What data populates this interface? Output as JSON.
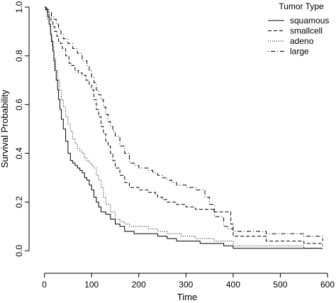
{
  "chart_data": {
    "type": "line",
    "step": true,
    "xlabel": "Time",
    "ylabel": "Survival Probability",
    "xlim": [
      -10,
      600
    ],
    "ylim": [
      -0.04,
      1.0
    ],
    "x_ticks": [
      0,
      100,
      200,
      300,
      400,
      500,
      600
    ],
    "y_ticks": [
      0.0,
      0.2,
      0.4,
      0.6,
      0.8,
      1.0
    ],
    "x_tick_labels": [
      "0",
      "100",
      "200",
      "300",
      "400",
      "500",
      "600"
    ],
    "y_tick_labels": [
      "0.0",
      "0.2",
      "0.4",
      "0.6",
      "0.8",
      "1.0"
    ],
    "grid": false,
    "legend": {
      "title": "Tumor Type",
      "position": "top-right"
    },
    "series": [
      {
        "name": "squamous",
        "line_style": "solid",
        "x": [
          0,
          3,
          7,
          10,
          13,
          15,
          18,
          20,
          22,
          25,
          28,
          30,
          33,
          36,
          40,
          45,
          50,
          55,
          60,
          65,
          70,
          75,
          80,
          85,
          90,
          95,
          100,
          105,
          110,
          115,
          120,
          130,
          140,
          150,
          160,
          170,
          190,
          220,
          240,
          260,
          280,
          330,
          380,
          400,
          550,
          590
        ],
        "y": [
          1.0,
          0.99,
          0.96,
          0.93,
          0.89,
          0.86,
          0.82,
          0.78,
          0.74,
          0.7,
          0.66,
          0.62,
          0.58,
          0.54,
          0.5,
          0.45,
          0.4,
          0.37,
          0.36,
          0.35,
          0.34,
          0.33,
          0.32,
          0.3,
          0.29,
          0.27,
          0.25,
          0.22,
          0.2,
          0.18,
          0.16,
          0.15,
          0.13,
          0.11,
          0.1,
          0.08,
          0.07,
          0.07,
          0.06,
          0.05,
          0.04,
          0.03,
          0.02,
          0.01,
          0.01,
          0.01
        ]
      },
      {
        "name": "smallcell",
        "line_style": "dashed",
        "x": [
          0,
          3,
          7,
          10,
          14,
          18,
          22,
          26,
          30,
          34,
          38,
          45,
          52,
          58,
          65,
          72,
          80,
          88,
          95,
          100,
          105,
          110,
          115,
          120,
          125,
          130,
          135,
          140,
          145,
          150,
          160,
          170,
          180,
          190,
          200,
          210,
          220,
          235,
          240,
          250,
          260,
          280,
          300,
          320,
          340,
          360,
          380,
          395,
          400,
          470,
          550,
          590
        ],
        "y": [
          1.0,
          0.99,
          0.98,
          0.96,
          0.94,
          0.92,
          0.9,
          0.88,
          0.86,
          0.85,
          0.83,
          0.8,
          0.77,
          0.76,
          0.74,
          0.73,
          0.72,
          0.7,
          0.68,
          0.66,
          0.62,
          0.58,
          0.55,
          0.51,
          0.48,
          0.45,
          0.43,
          0.4,
          0.37,
          0.34,
          0.31,
          0.28,
          0.26,
          0.26,
          0.25,
          0.25,
          0.24,
          0.23,
          0.22,
          0.21,
          0.2,
          0.19,
          0.18,
          0.17,
          0.17,
          0.16,
          0.16,
          0.11,
          0.06,
          0.04,
          0.03,
          0.02
        ]
      },
      {
        "name": "adeno",
        "line_style": "dotted",
        "x": [
          0,
          3,
          7,
          10,
          13,
          16,
          20,
          24,
          28,
          32,
          36,
          40,
          45,
          50,
          55,
          60,
          65,
          70,
          75,
          80,
          85,
          90,
          95,
          100,
          105,
          110,
          115,
          120,
          125,
          130,
          140,
          150,
          160,
          170,
          180,
          200,
          220,
          240,
          260,
          290,
          320,
          360,
          400,
          450,
          550,
          590
        ],
        "y": [
          1.0,
          0.98,
          0.95,
          0.92,
          0.88,
          0.84,
          0.79,
          0.74,
          0.7,
          0.66,
          0.62,
          0.59,
          0.55,
          0.52,
          0.49,
          0.46,
          0.44,
          0.42,
          0.41,
          0.4,
          0.38,
          0.37,
          0.36,
          0.35,
          0.34,
          0.31,
          0.29,
          0.26,
          0.22,
          0.19,
          0.16,
          0.13,
          0.12,
          0.11,
          0.1,
          0.1,
          0.09,
          0.08,
          0.07,
          0.06,
          0.05,
          0.04,
          0.02,
          0.02,
          0.01,
          0.01
        ]
      },
      {
        "name": "large",
        "line_style": "dotdash",
        "x": [
          0,
          5,
          10,
          15,
          20,
          25,
          30,
          35,
          40,
          50,
          60,
          70,
          80,
          90,
          95,
          100,
          105,
          110,
          115,
          120,
          125,
          130,
          135,
          140,
          145,
          150,
          160,
          170,
          180,
          190,
          200,
          210,
          220,
          230,
          240,
          250,
          260,
          270,
          280,
          300,
          320,
          330,
          340,
          350,
          360,
          380,
          390,
          400,
          470,
          550,
          590
        ],
        "y": [
          1.0,
          0.99,
          0.98,
          0.96,
          0.95,
          0.93,
          0.91,
          0.89,
          0.87,
          0.85,
          0.83,
          0.81,
          0.78,
          0.76,
          0.74,
          0.71,
          0.69,
          0.66,
          0.64,
          0.62,
          0.59,
          0.56,
          0.53,
          0.51,
          0.49,
          0.47,
          0.43,
          0.4,
          0.36,
          0.35,
          0.34,
          0.34,
          0.33,
          0.32,
          0.31,
          0.3,
          0.29,
          0.28,
          0.27,
          0.26,
          0.25,
          0.25,
          0.22,
          0.19,
          0.14,
          0.1,
          0.09,
          0.08,
          0.07,
          0.06,
          0.04
        ]
      }
    ]
  }
}
